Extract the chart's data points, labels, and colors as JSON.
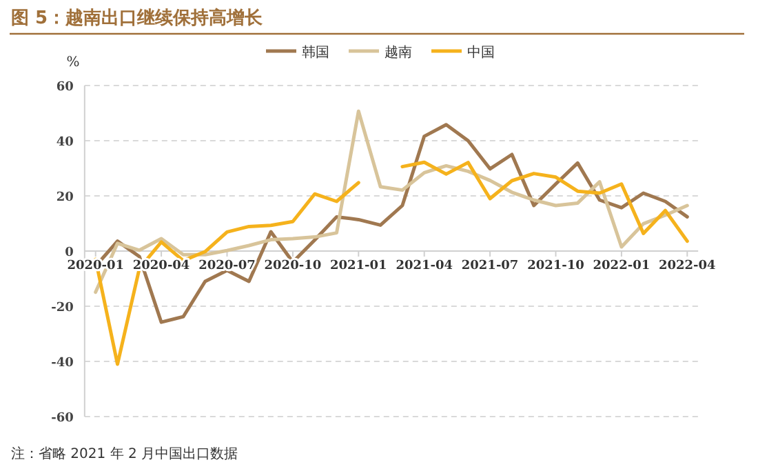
{
  "chart_data": {
    "type": "line",
    "title": "图 5：越南出口继续保持高增长",
    "ylabel": "%",
    "categories": [
      "2020-01",
      null,
      null,
      "2020-04",
      null,
      null,
      "2020-07",
      null,
      null,
      "2020-10",
      null,
      null,
      "2021-01",
      null,
      null,
      "2021-04",
      null,
      null,
      "2021-07",
      null,
      null,
      "2021-10",
      null,
      null,
      "2022-01",
      null,
      null,
      "2022-04"
    ],
    "series": [
      {
        "name": "韩国",
        "color": "#a07850",
        "values": [
          -5.5,
          3.6,
          -2,
          -25.8,
          -23.8,
          -11,
          -7,
          -11,
          7,
          -4,
          4,
          12.4,
          11.4,
          9.4,
          16.5,
          41.6,
          45.8,
          40,
          29.8,
          35,
          16.5,
          24.3,
          31.9,
          18.5,
          15.7,
          21,
          18,
          12.4
        ]
      },
      {
        "name": "越南",
        "color": "#d8c49a",
        "values": [
          -14.9,
          2.8,
          0.3,
          4.5,
          -1.3,
          -1.3,
          0.2,
          2,
          4.1,
          4.5,
          5.1,
          6.6,
          50.7,
          23.3,
          22.1,
          28.4,
          30.9,
          28.9,
          25.6,
          21.3,
          18.5,
          16.5,
          17.4,
          25.1,
          1.5,
          9.9,
          13,
          16.5
        ]
      },
      {
        "name": "中国",
        "color": "#f5b21c",
        "values": [
          -3,
          -41,
          -6.3,
          3.3,
          -3.5,
          -0.2,
          6.9,
          8.9,
          9.3,
          10.7,
          20.7,
          18,
          24.8,
          null,
          30.6,
          32.2,
          27.9,
          32.1,
          19,
          25.5,
          28.1,
          26.8,
          21.7,
          21,
          24.3,
          6.4,
          14.7,
          3.6
        ]
      }
    ],
    "ylim": [
      -60,
      60
    ],
    "yticks": [
      -60,
      -40,
      -20,
      0,
      20,
      40,
      60
    ],
    "grid": "y",
    "legend": "top",
    "line_style": "solid",
    "annotations": [
      "注：省略 2021 年 2 月中国出口数据"
    ]
  }
}
